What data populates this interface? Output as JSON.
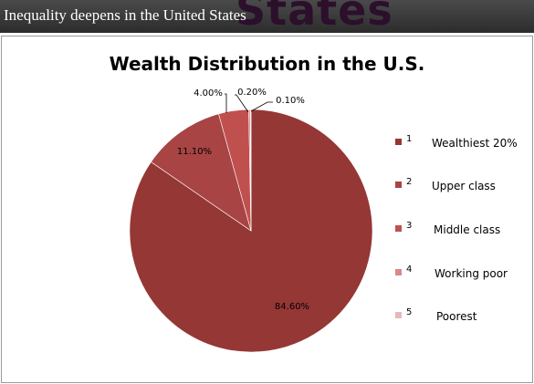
{
  "header": {
    "title": "Inequality deepens in the United States",
    "background_word": "States"
  },
  "chart_data": {
    "type": "pie",
    "title": "Wealth Distribution in the U.S.",
    "legend_position": "right",
    "slices": [
      {
        "legend_number": "1",
        "label": "Wealthiest 20%",
        "value": 84.6,
        "data_label": "84.60%",
        "color": "#953735"
      },
      {
        "legend_number": "2",
        "label": "Upper class",
        "value": 11.1,
        "data_label": "11.10%",
        "color": "#a84444"
      },
      {
        "legend_number": "3",
        "label": "Middle class",
        "value": 4.0,
        "data_label": "4.00%",
        "color": "#c0504d"
      },
      {
        "legend_number": "4",
        "label": "Working poor",
        "value": 0.2,
        "data_label": "0.20%",
        "color": "#d9888a"
      },
      {
        "legend_number": "5",
        "label": "Poorest",
        "value": 0.1,
        "data_label": "0.10%",
        "color": "#e6b9b8"
      }
    ]
  }
}
